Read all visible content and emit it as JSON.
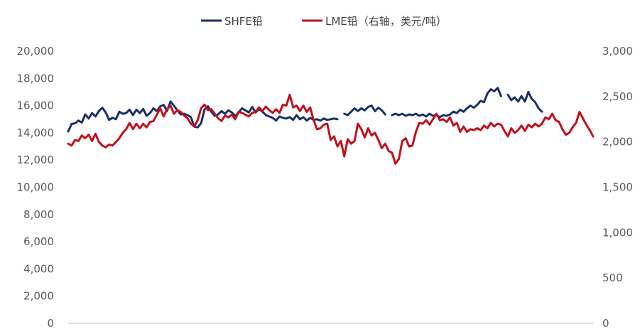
{
  "chart_data": {
    "type": "line",
    "legend_position": "top-center",
    "grid": false,
    "y_left": {
      "range": [
        0,
        20000
      ],
      "tick_labels": [
        "0",
        "2,000",
        "4,000",
        "6,000",
        "8,000",
        "10,000",
        "12,000",
        "14,000",
        "16,000",
        "18,000",
        "20,000"
      ]
    },
    "y_right": {
      "range": [
        0,
        3000
      ],
      "tick_labels": [
        "0",
        "500",
        "1,000",
        "1,500",
        "2,000",
        "2,500",
        "3,000"
      ]
    },
    "series": [
      {
        "name": "SHFE铅",
        "axis": "left",
        "color": "#1b2f66",
        "points": [
          [
            0,
            14100
          ],
          [
            2,
            14650
          ],
          [
            4,
            14700
          ],
          [
            6,
            14900
          ],
          [
            8,
            14750
          ],
          [
            10,
            15350
          ],
          [
            12,
            15050
          ],
          [
            14,
            15450
          ],
          [
            16,
            15200
          ],
          [
            18,
            15600
          ],
          [
            20,
            15850
          ],
          [
            22,
            15500
          ],
          [
            24,
            14950
          ],
          [
            26,
            15100
          ],
          [
            28,
            15000
          ],
          [
            30,
            15550
          ],
          [
            32,
            15400
          ],
          [
            34,
            15450
          ],
          [
            36,
            15700
          ],
          [
            38,
            15300
          ],
          [
            40,
            15700
          ],
          [
            42,
            15450
          ],
          [
            44,
            15750
          ],
          [
            46,
            15250
          ],
          [
            48,
            15450
          ],
          [
            50,
            15800
          ],
          [
            52,
            15600
          ],
          [
            54,
            15950
          ],
          [
            56,
            16050
          ],
          [
            58,
            15600
          ],
          [
            60,
            16300
          ],
          [
            62,
            16000
          ],
          [
            64,
            15650
          ],
          [
            66,
            15350
          ],
          [
            68,
            15400
          ],
          [
            70,
            15300
          ],
          [
            72,
            15150
          ],
          [
            74,
            14450
          ],
          [
            76,
            14400
          ],
          [
            78,
            14700
          ],
          [
            80,
            15700
          ],
          [
            82,
            15950
          ],
          [
            84,
            15550
          ],
          [
            86,
            15250
          ],
          [
            88,
            15350
          ],
          [
            90,
            15600
          ],
          [
            92,
            15400
          ],
          [
            94,
            15650
          ],
          [
            96,
            15500
          ],
          [
            98,
            15250
          ],
          [
            100,
            15500
          ],
          [
            102,
            15800
          ],
          [
            104,
            15650
          ],
          [
            106,
            15500
          ],
          [
            108,
            15900
          ],
          [
            110,
            15500
          ],
          [
            112,
            15750
          ],
          [
            114,
            15550
          ],
          [
            116,
            15300
          ],
          [
            118,
            15200
          ],
          [
            120,
            15100
          ],
          [
            122,
            14900
          ],
          [
            124,
            15200
          ],
          [
            126,
            15100
          ],
          [
            128,
            15050
          ],
          [
            130,
            15150
          ],
          [
            132,
            14950
          ],
          [
            134,
            15300
          ],
          [
            136,
            15000
          ],
          [
            138,
            15150
          ],
          [
            140,
            14900
          ],
          [
            142,
            15100
          ],
          [
            144,
            14950
          ],
          [
            146,
            15000
          ],
          [
            148,
            14900
          ],
          [
            150,
            15050
          ],
          [
            152,
            14950
          ],
          [
            154,
            15000
          ],
          [
            156,
            15050
          ],
          [
            158,
            15000
          ],
          [
            160,
            null
          ],
          [
            162,
            15400
          ],
          [
            164,
            15300
          ],
          [
            166,
            15550
          ],
          [
            168,
            15800
          ],
          [
            170,
            15600
          ],
          [
            172,
            15800
          ],
          [
            174,
            15650
          ],
          [
            176,
            15900
          ],
          [
            178,
            16000
          ],
          [
            180,
            15600
          ],
          [
            182,
            15850
          ],
          [
            184,
            15650
          ],
          [
            186,
            15350
          ],
          [
            188,
            null
          ],
          [
            190,
            15300
          ],
          [
            192,
            15400
          ],
          [
            194,
            15300
          ],
          [
            196,
            15400
          ],
          [
            198,
            15250
          ],
          [
            200,
            15350
          ],
          [
            202,
            15300
          ],
          [
            204,
            15400
          ],
          [
            206,
            15250
          ],
          [
            208,
            15350
          ],
          [
            210,
            15200
          ],
          [
            212,
            15400
          ],
          [
            214,
            15250
          ],
          [
            216,
            15300
          ],
          [
            218,
            15150
          ],
          [
            220,
            15300
          ],
          [
            222,
            15250
          ],
          [
            224,
            15350
          ],
          [
            226,
            15550
          ],
          [
            228,
            15450
          ],
          [
            230,
            15700
          ],
          [
            232,
            15550
          ],
          [
            234,
            15800
          ],
          [
            236,
            16000
          ],
          [
            238,
            15850
          ],
          [
            240,
            16050
          ],
          [
            242,
            16350
          ],
          [
            244,
            16250
          ],
          [
            246,
            16900
          ],
          [
            248,
            17200
          ],
          [
            250,
            17050
          ],
          [
            252,
            17300
          ],
          [
            254,
            16700
          ],
          [
            256,
            null
          ],
          [
            258,
            16800
          ],
          [
            260,
            16400
          ],
          [
            262,
            16600
          ],
          [
            264,
            16300
          ],
          [
            266,
            16700
          ],
          [
            268,
            16300
          ],
          [
            270,
            17000
          ],
          [
            272,
            16500
          ],
          [
            274,
            16250
          ],
          [
            276,
            15800
          ],
          [
            278,
            15550
          ]
        ]
      },
      {
        "name": "LME铅（右轴，美元/吨）",
        "axis": "right",
        "color": "#c0101b",
        "points": [
          [
            0,
            1980
          ],
          [
            2,
            1960
          ],
          [
            4,
            2020
          ],
          [
            6,
            2010
          ],
          [
            8,
            2070
          ],
          [
            10,
            2040
          ],
          [
            12,
            2080
          ],
          [
            14,
            2010
          ],
          [
            16,
            2090
          ],
          [
            18,
            2000
          ],
          [
            20,
            1960
          ],
          [
            22,
            1940
          ],
          [
            24,
            1970
          ],
          [
            26,
            1960
          ],
          [
            28,
            2000
          ],
          [
            30,
            2040
          ],
          [
            32,
            2100
          ],
          [
            34,
            2140
          ],
          [
            36,
            2210
          ],
          [
            38,
            2140
          ],
          [
            40,
            2200
          ],
          [
            42,
            2150
          ],
          [
            44,
            2200
          ],
          [
            46,
            2160
          ],
          [
            48,
            2220
          ],
          [
            50,
            2230
          ],
          [
            52,
            2300
          ],
          [
            54,
            2370
          ],
          [
            56,
            2280
          ],
          [
            58,
            2360
          ],
          [
            60,
            2400
          ],
          [
            62,
            2310
          ],
          [
            64,
            2350
          ],
          [
            66,
            2330
          ],
          [
            68,
            2290
          ],
          [
            70,
            2260
          ],
          [
            72,
            2200
          ],
          [
            74,
            2170
          ],
          [
            76,
            2240
          ],
          [
            78,
            2370
          ],
          [
            80,
            2410
          ],
          [
            82,
            2350
          ],
          [
            84,
            2360
          ],
          [
            86,
            2310
          ],
          [
            88,
            2260
          ],
          [
            90,
            2230
          ],
          [
            92,
            2290
          ],
          [
            94,
            2270
          ],
          [
            96,
            2300
          ],
          [
            98,
            2250
          ],
          [
            100,
            2330
          ],
          [
            102,
            2320
          ],
          [
            104,
            2300
          ],
          [
            106,
            2280
          ],
          [
            108,
            2320
          ],
          [
            110,
            2330
          ],
          [
            112,
            2380
          ],
          [
            114,
            2340
          ],
          [
            116,
            2390
          ],
          [
            118,
            2350
          ],
          [
            120,
            2320
          ],
          [
            122,
            2360
          ],
          [
            124,
            2320
          ],
          [
            126,
            2410
          ],
          [
            128,
            2400
          ],
          [
            130,
            2520
          ],
          [
            132,
            2380
          ],
          [
            134,
            2400
          ],
          [
            136,
            2340
          ],
          [
            138,
            2400
          ],
          [
            140,
            2330
          ],
          [
            142,
            2380
          ],
          [
            144,
            2240
          ],
          [
            146,
            2140
          ],
          [
            148,
            2150
          ],
          [
            150,
            2190
          ],
          [
            152,
            2200
          ],
          [
            154,
            2020
          ],
          [
            156,
            2060
          ],
          [
            158,
            1950
          ],
          [
            160,
            2010
          ],
          [
            162,
            1840
          ],
          [
            164,
            2030
          ],
          [
            166,
            1980
          ],
          [
            168,
            2010
          ],
          [
            170,
            2200
          ],
          [
            172,
            2140
          ],
          [
            174,
            2050
          ],
          [
            176,
            2150
          ],
          [
            178,
            2070
          ],
          [
            180,
            2100
          ],
          [
            182,
            2020
          ],
          [
            184,
            1930
          ],
          [
            186,
            1980
          ],
          [
            188,
            1900
          ],
          [
            190,
            1880
          ],
          [
            192,
            1760
          ],
          [
            194,
            1810
          ],
          [
            196,
            2010
          ],
          [
            198,
            2040
          ],
          [
            200,
            1950
          ],
          [
            202,
            1960
          ],
          [
            204,
            2110
          ],
          [
            206,
            2210
          ],
          [
            208,
            2200
          ],
          [
            210,
            2240
          ],
          [
            212,
            2190
          ],
          [
            214,
            2250
          ],
          [
            216,
            2310
          ],
          [
            218,
            2240
          ],
          [
            220,
            2250
          ],
          [
            222,
            2220
          ],
          [
            224,
            2270
          ],
          [
            226,
            2180
          ],
          [
            228,
            2210
          ],
          [
            230,
            2110
          ],
          [
            232,
            2170
          ],
          [
            234,
            2110
          ],
          [
            236,
            2140
          ],
          [
            238,
            2130
          ],
          [
            240,
            2150
          ],
          [
            242,
            2130
          ],
          [
            244,
            2180
          ],
          [
            246,
            2150
          ],
          [
            248,
            2210
          ],
          [
            250,
            2170
          ],
          [
            252,
            2200
          ],
          [
            254,
            2190
          ],
          [
            256,
            2120
          ],
          [
            258,
            2060
          ],
          [
            260,
            2150
          ],
          [
            262,
            2100
          ],
          [
            264,
            2130
          ],
          [
            266,
            2180
          ],
          [
            268,
            2120
          ],
          [
            270,
            2190
          ],
          [
            272,
            2160
          ],
          [
            274,
            2200
          ],
          [
            276,
            2170
          ],
          [
            278,
            2200
          ],
          [
            280,
            2270
          ],
          [
            282,
            2250
          ],
          [
            284,
            2310
          ],
          [
            286,
            2240
          ],
          [
            288,
            2220
          ],
          [
            290,
            2140
          ],
          [
            292,
            2080
          ],
          [
            294,
            2100
          ],
          [
            296,
            2160
          ],
          [
            298,
            2210
          ],
          [
            300,
            2330
          ],
          [
            302,
            2260
          ],
          [
            304,
            2190
          ],
          [
            306,
            2130
          ],
          [
            308,
            2060
          ]
        ]
      }
    ]
  }
}
